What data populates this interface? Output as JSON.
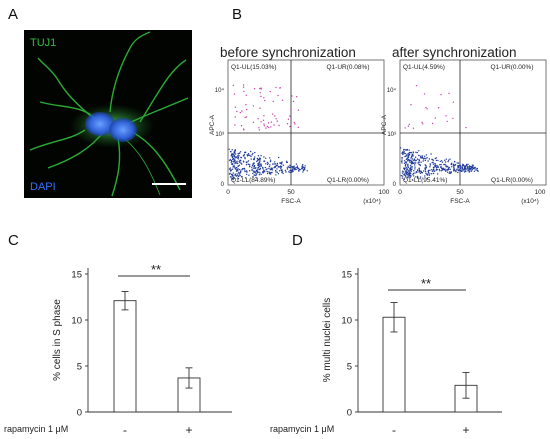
{
  "panels": {
    "A": {
      "letter": "A",
      "labels": {
        "top": "TUJ1",
        "bottom": "DAPI"
      },
      "colors": {
        "background": "#020402",
        "tuj1": "#2fbf3a",
        "dapi": "#2f5fe0",
        "scalebar": "#ffffff"
      }
    },
    "B": {
      "letter": "B",
      "plots": [
        {
          "title": "before synchronization",
          "xlabel": "FSC-A",
          "ylabel": "APC-A",
          "x_ticks": [
            "0",
            "50",
            "100"
          ],
          "x_unit": "(x10⁴)",
          "y_ticks": [
            "0",
            "10³",
            "10⁴"
          ],
          "quadrants": {
            "UL": "Q1-UL(15.03%)",
            "UR": "Q1-UR(0.08%)",
            "LL": "Q1-LL(84.89%)",
            "LR": "Q1-LR(0.00%)"
          },
          "ul_fraction": 0.1503
        },
        {
          "title": "after synchronization",
          "xlabel": "FSC-A",
          "ylabel": "APC-A",
          "x_ticks": [
            "0",
            "50",
            "100"
          ],
          "x_unit": "(x10⁴)",
          "y_ticks": [
            "0",
            "10³",
            "10⁴"
          ],
          "quadrants": {
            "UL": "Q1-UL(4.59%)",
            "UR": "Q1-UR(0.00%)",
            "LL": "Q1-LL(95.41%)",
            "LR": "Q1-LR(0.00%)"
          },
          "ul_fraction": 0.0459
        }
      ],
      "colors": {
        "ul_dots": "#c83fb0",
        "ll_dots": "#1e3a9a"
      }
    },
    "C": {
      "letter": "C",
      "significance": "**",
      "row_label": "rapamycin 1 μM"
    },
    "D": {
      "letter": "D",
      "significance": "**",
      "row_label": "rapamycin 1 μM"
    }
  },
  "chart_data": [
    {
      "type": "bar",
      "panel": "C",
      "categories": [
        "-",
        "+"
      ],
      "values": [
        12.1,
        3.7
      ],
      "errors": [
        1.0,
        1.1
      ],
      "ylabel": "% cells in S phase",
      "ylim": [
        0,
        15
      ],
      "y_ticks": [
        0,
        5,
        10,
        15
      ],
      "significance": "**",
      "grid": false
    },
    {
      "type": "bar",
      "panel": "D",
      "categories": [
        "-",
        "+"
      ],
      "values": [
        10.3,
        2.9
      ],
      "errors": [
        1.6,
        1.4
      ],
      "ylabel": "% multi nuclei cells",
      "ylim": [
        0,
        15
      ],
      "y_ticks": [
        0,
        5,
        10,
        15
      ],
      "significance": "**",
      "grid": false
    }
  ]
}
